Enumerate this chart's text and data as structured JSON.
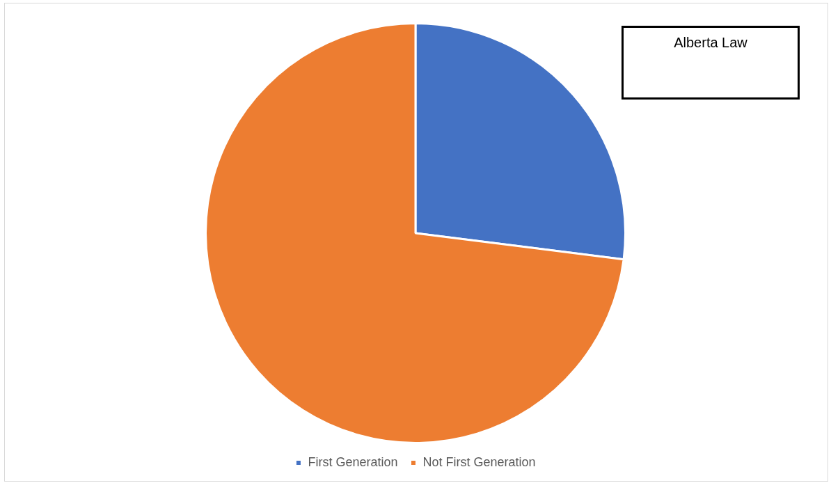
{
  "chart_data": {
    "type": "pie",
    "title": "Alberta Law",
    "categories": [
      "First Generation",
      "Not First Generation"
    ],
    "values": [
      27,
      73
    ],
    "colors": [
      "#4472c4",
      "#ed7d31"
    ],
    "legend": "bottom"
  }
}
